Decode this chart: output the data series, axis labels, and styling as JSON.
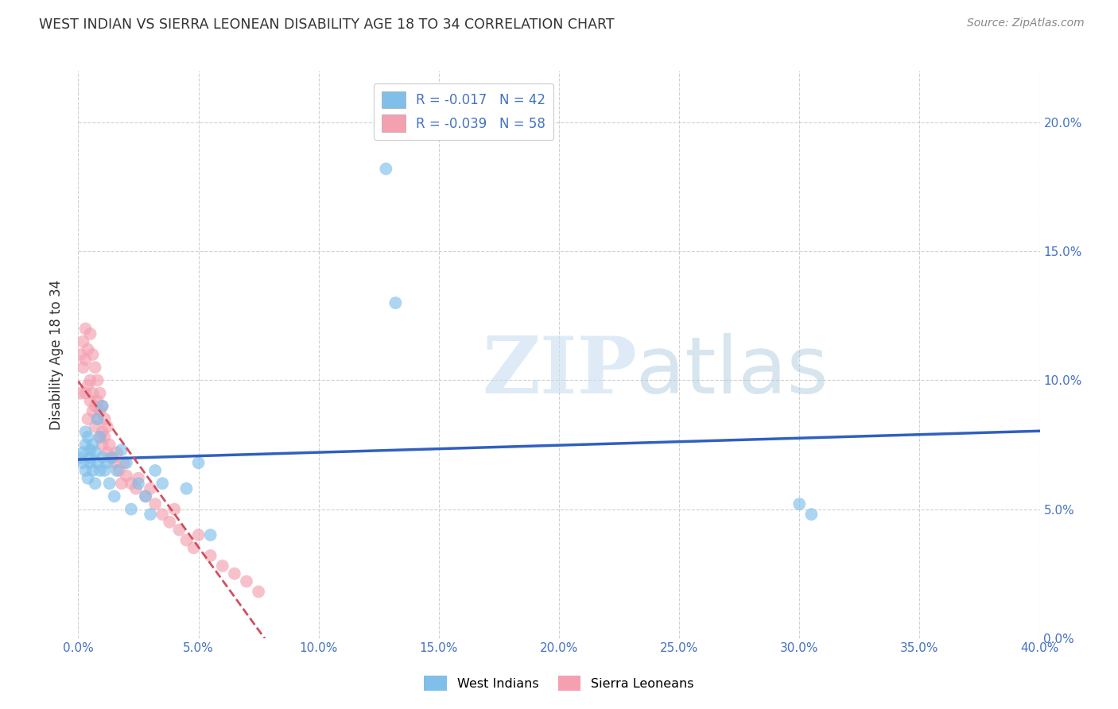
{
  "title": "WEST INDIAN VS SIERRA LEONEAN DISABILITY AGE 18 TO 34 CORRELATION CHART",
  "source": "Source: ZipAtlas.com",
  "ylabel": "Disability Age 18 to 34",
  "xlim": [
    0.0,
    0.4
  ],
  "ylim": [
    0.0,
    0.22
  ],
  "xticks": [
    0.0,
    0.05,
    0.1,
    0.15,
    0.2,
    0.25,
    0.3,
    0.35,
    0.4
  ],
  "yticks": [
    0.0,
    0.05,
    0.1,
    0.15,
    0.2
  ],
  "xtick_labels": [
    "0.0%",
    "5.0%",
    "10.0%",
    "15.0%",
    "20.0%",
    "25.0%",
    "30.0%",
    "35.0%",
    "40.0%"
  ],
  "ytick_labels": [
    "0.0%",
    "5.0%",
    "10.0%",
    "15.0%",
    "20.0%"
  ],
  "legend_r1": "R = -0.017",
  "legend_n1": "N = 42",
  "legend_r2": "R = -0.039",
  "legend_n2": "N = 58",
  "blue_color": "#7fbfea",
  "pink_color": "#f4a0b0",
  "blue_line_color": "#3060c0",
  "pink_line_color": "#d05060",
  "west_indians_x": [
    0.001,
    0.002,
    0.002,
    0.003,
    0.003,
    0.003,
    0.004,
    0.004,
    0.005,
    0.005,
    0.005,
    0.006,
    0.006,
    0.007,
    0.007,
    0.008,
    0.008,
    0.009,
    0.009,
    0.01,
    0.01,
    0.011,
    0.012,
    0.013,
    0.014,
    0.015,
    0.016,
    0.018,
    0.02,
    0.022,
    0.025,
    0.028,
    0.03,
    0.032,
    0.035,
    0.128,
    0.132,
    0.3,
    0.305,
    0.045,
    0.05,
    0.055
  ],
  "west_indians_y": [
    0.07,
    0.068,
    0.072,
    0.075,
    0.065,
    0.08,
    0.062,
    0.078,
    0.07,
    0.073,
    0.068,
    0.075,
    0.065,
    0.06,
    0.072,
    0.085,
    0.068,
    0.078,
    0.065,
    0.07,
    0.09,
    0.065,
    0.068,
    0.06,
    0.07,
    0.055,
    0.065,
    0.073,
    0.068,
    0.05,
    0.06,
    0.055,
    0.048,
    0.065,
    0.06,
    0.182,
    0.13,
    0.052,
    0.048,
    0.058,
    0.068,
    0.04
  ],
  "sierra_leoneans_x": [
    0.001,
    0.001,
    0.002,
    0.002,
    0.003,
    0.003,
    0.003,
    0.004,
    0.004,
    0.004,
    0.005,
    0.005,
    0.005,
    0.006,
    0.006,
    0.006,
    0.007,
    0.007,
    0.007,
    0.008,
    0.008,
    0.008,
    0.009,
    0.009,
    0.009,
    0.01,
    0.01,
    0.01,
    0.011,
    0.011,
    0.012,
    0.012,
    0.013,
    0.014,
    0.015,
    0.016,
    0.017,
    0.018,
    0.019,
    0.02,
    0.022,
    0.024,
    0.025,
    0.028,
    0.03,
    0.032,
    0.035,
    0.038,
    0.04,
    0.042,
    0.045,
    0.048,
    0.05,
    0.055,
    0.06,
    0.065,
    0.07,
    0.075
  ],
  "sierra_leoneans_y": [
    0.11,
    0.095,
    0.115,
    0.105,
    0.12,
    0.108,
    0.095,
    0.112,
    0.098,
    0.085,
    0.118,
    0.1,
    0.092,
    0.11,
    0.095,
    0.088,
    0.105,
    0.09,
    0.082,
    0.1,
    0.092,
    0.085,
    0.095,
    0.088,
    0.078,
    0.09,
    0.08,
    0.075,
    0.085,
    0.078,
    0.082,
    0.072,
    0.075,
    0.07,
    0.068,
    0.072,
    0.065,
    0.06,
    0.068,
    0.063,
    0.06,
    0.058,
    0.062,
    0.055,
    0.058,
    0.052,
    0.048,
    0.045,
    0.05,
    0.042,
    0.038,
    0.035,
    0.04,
    0.032,
    0.028,
    0.025,
    0.022,
    0.018
  ]
}
